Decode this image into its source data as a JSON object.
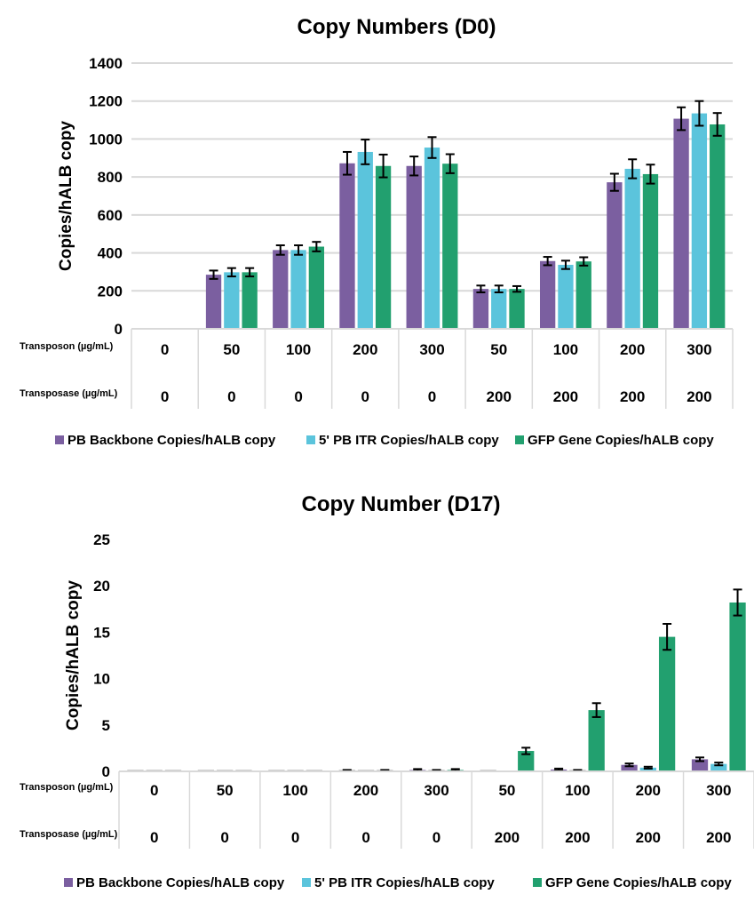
{
  "colors": {
    "PB Backbone": "#7b5fa0",
    "5' PB ITR": "#5bc4dc",
    "GFP Gene": "#22a06f",
    "error": "#000000",
    "grid": "#d9d9d9"
  },
  "chart_data": [
    {
      "type": "bar",
      "title": "Copy Numbers (D0)",
      "ylabel": "Copies/hALB copy",
      "ylim": [
        0,
        1400
      ],
      "yticks": [
        0,
        200,
        400,
        600,
        800,
        1000,
        1200,
        1400
      ],
      "grid": true,
      "legend": "bottom",
      "row_labels": [
        "Transposon (µg/mL)",
        "Transposase (µg/mL)"
      ],
      "transposon": [
        "0",
        "50",
        "100",
        "200",
        "300",
        "50",
        "100",
        "200",
        "300"
      ],
      "transposase": [
        "0",
        "0",
        "0",
        "0",
        "0",
        "200",
        "200",
        "200",
        "200"
      ],
      "series": [
        {
          "name": "PB Backbone Copies/hALB copy",
          "values": [
            0,
            285,
            415,
            872,
            858,
            210,
            357,
            772,
            1107
          ],
          "errors": [
            0,
            22,
            25,
            60,
            50,
            18,
            22,
            45,
            60
          ]
        },
        {
          "name": "5' PB ITR Copies/hALB copy",
          "values": [
            0,
            298,
            415,
            932,
            955,
            210,
            337,
            843,
            1135
          ],
          "errors": [
            0,
            22,
            25,
            65,
            55,
            18,
            22,
            50,
            65
          ]
        },
        {
          "name": "GFP Gene Copies/hALB copy",
          "values": [
            0,
            298,
            433,
            858,
            870,
            210,
            355,
            815,
            1077
          ],
          "errors": [
            0,
            22,
            25,
            60,
            50,
            15,
            22,
            50,
            60
          ]
        }
      ]
    },
    {
      "type": "bar",
      "title": "Copy Number (D17)",
      "ylabel": "Copies/hALB copy",
      "ylim": [
        0,
        25
      ],
      "yticks": [
        0,
        5,
        10,
        15,
        20,
        25
      ],
      "grid": false,
      "legend": "bottom",
      "row_labels": [
        "Transposon (µg/mL)",
        "Transposase (µg/mL)"
      ],
      "transposon": [
        "0",
        "50",
        "100",
        "200",
        "300",
        "50",
        "100",
        "200",
        "300"
      ],
      "transposase": [
        "0",
        "0",
        "0",
        "0",
        "0",
        "200",
        "200",
        "200",
        "200"
      ],
      "series": [
        {
          "name": "PB Backbone Copies/hALB copy",
          "values": [
            0.05,
            0.05,
            0.05,
            0.1,
            0.15,
            0.05,
            0.2,
            0.7,
            1.3
          ],
          "errors": [
            0,
            0,
            0,
            0.05,
            0.1,
            0,
            0.1,
            0.15,
            0.2
          ]
        },
        {
          "name": "5' PB ITR Copies/hALB copy",
          "values": [
            0.05,
            0.05,
            0.05,
            0.05,
            0.1,
            0,
            0.1,
            0.4,
            0.8
          ],
          "errors": [
            0,
            0,
            0,
            0,
            0.05,
            0,
            0.05,
            0.1,
            0.15
          ]
        },
        {
          "name": "GFP Gene Copies/hALB copy",
          "values": [
            0.05,
            0.05,
            0.05,
            0.1,
            0.15,
            2.2,
            6.6,
            14.5,
            18.2
          ],
          "errors": [
            0,
            0,
            0,
            0.05,
            0.1,
            0.35,
            0.75,
            1.4,
            1.4
          ]
        }
      ]
    }
  ]
}
